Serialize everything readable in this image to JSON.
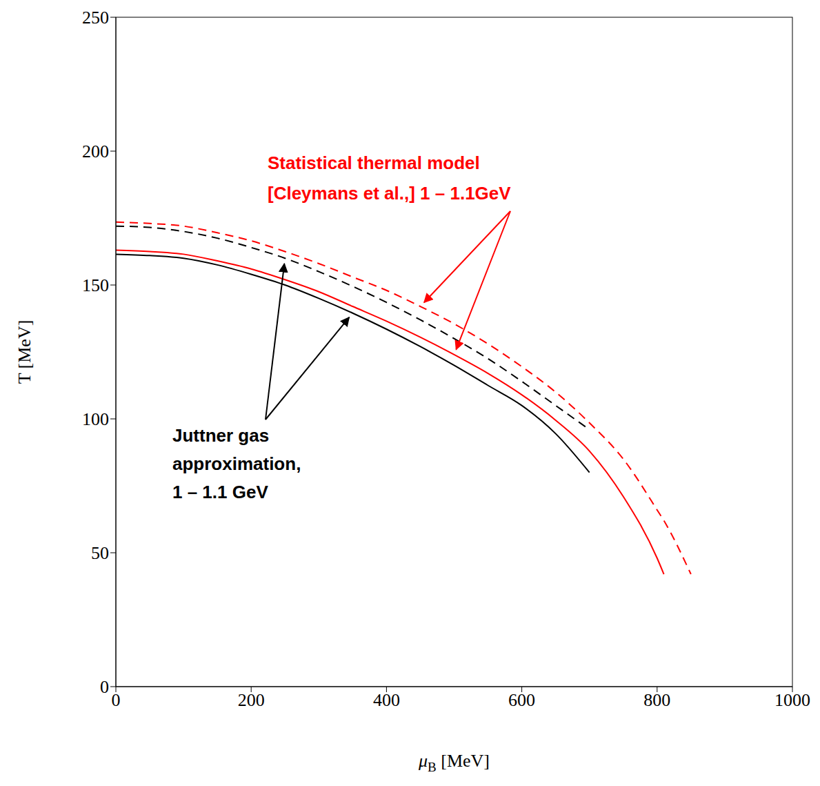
{
  "chart_data": {
    "type": "line",
    "x_label": "μB [MeV]",
    "y_label": "T [MeV]",
    "x": [
      0,
      50,
      100,
      150,
      200,
      250,
      300,
      350,
      400,
      450,
      500,
      550,
      600,
      650,
      700,
      750,
      800,
      810,
      850
    ],
    "xlim": [
      0,
      1000
    ],
    "xticks": [
      0,
      200,
      400,
      600,
      800,
      1000
    ],
    "ylim": [
      0,
      250
    ],
    "yticks": [
      0,
      50,
      100,
      150,
      200,
      250
    ],
    "grid": false,
    "series": [
      {
        "color": "#000000",
        "line_style": "solid",
        "values": [
          161.5,
          161,
          160,
          157.5,
          154,
          150,
          145,
          139.5,
          133.5,
          127,
          120,
          112.5,
          105,
          94.5,
          80,
          null,
          null,
          null,
          null
        ]
      },
      {
        "color": "#000000",
        "line_style": "dashed",
        "values": [
          172,
          171.5,
          170,
          167.5,
          164,
          160,
          155,
          149.5,
          143.5,
          137,
          130,
          122.5,
          114,
          105,
          96,
          null,
          null,
          null,
          null
        ]
      },
      {
        "color": "#ff0000",
        "line_style": "solid",
        "values": [
          163,
          162.5,
          161.5,
          159,
          156,
          152,
          147.5,
          142,
          136.5,
          130.5,
          124,
          117,
          109,
          99.5,
          88,
          71,
          48,
          42,
          null
        ]
      },
      {
        "color": "#ff0000",
        "line_style": "dashed",
        "values": [
          173.5,
          173,
          172,
          169.5,
          166.5,
          162.5,
          158,
          153,
          148,
          142,
          135.5,
          128,
          119.5,
          110,
          98.5,
          85,
          66,
          62,
          42
        ]
      }
    ],
    "annotations": [
      {
        "lines": [
          "Statistical thermal model",
          "[Cleymans et al.,] 1 – 1.1GeV"
        ],
        "color": "#ff0000"
      },
      {
        "lines": [
          "Juttner gas",
          "approximation,",
          "1 – 1.1 GeV"
        ],
        "color": "#000000"
      }
    ]
  }
}
